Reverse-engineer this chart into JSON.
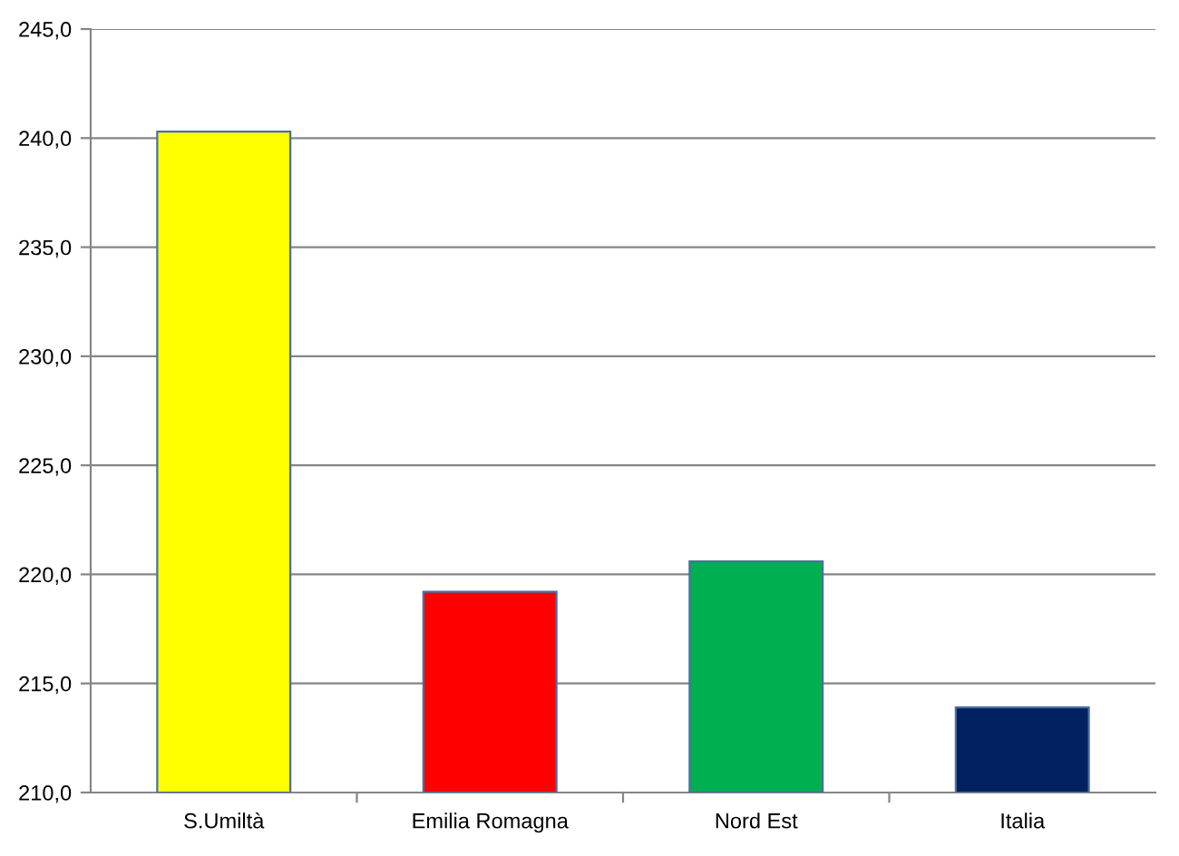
{
  "chart_data": {
    "type": "bar",
    "categories": [
      "S.Umiltà",
      "Emilia Romagna",
      "Nord Est",
      "Italia"
    ],
    "values": [
      240.3,
      219.2,
      220.6,
      213.9
    ],
    "colors": [
      "#ffff00",
      "#ff0000",
      "#00b050",
      "#002060"
    ],
    "ylim": [
      210,
      245
    ],
    "yticks": [
      {
        "value": 210,
        "label": "210,0"
      },
      {
        "value": 215,
        "label": "215,0"
      },
      {
        "value": 220,
        "label": "220,0"
      },
      {
        "value": 225,
        "label": "225,0"
      },
      {
        "value": 230,
        "label": "230,0"
      },
      {
        "value": 235,
        "label": "235,0"
      },
      {
        "value": 240,
        "label": "240,0"
      },
      {
        "value": 245,
        "label": "245,0"
      }
    ],
    "grid": "y",
    "legend": false
  }
}
